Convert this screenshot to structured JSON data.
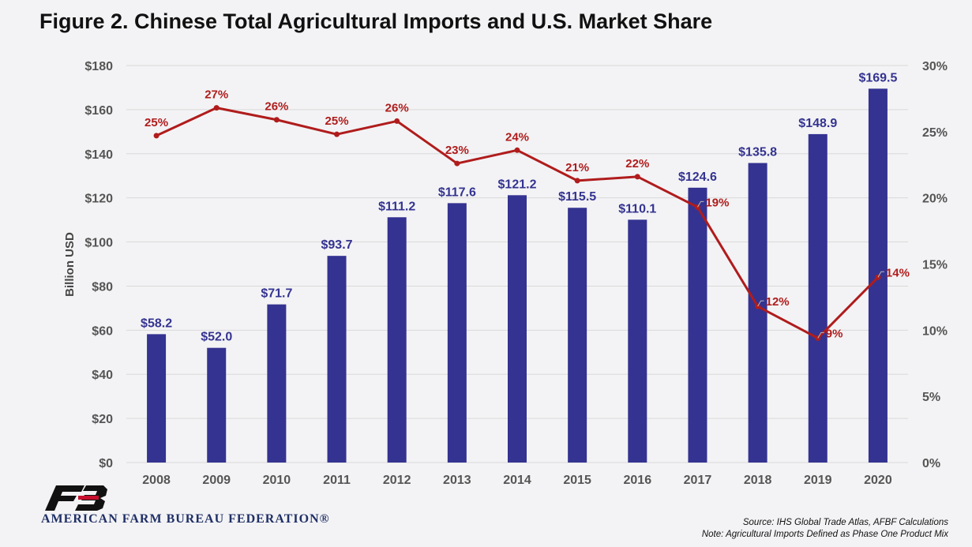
{
  "title": "Figure 2. Chinese Total Agricultural Imports and U.S. Market Share",
  "source_line": "Source: IHS Global Trade Atlas, AFBF Calculations",
  "note_line": "Note: Agricultural Imports Defined as Phase One Product Mix",
  "logo_text": "AMERICAN FARM BUREAU FEDERATION®",
  "logo_icon": "afbf-fb-logo",
  "chart_data": {
    "type": "bar",
    "categories": [
      "2008",
      "2009",
      "2010",
      "2011",
      "2012",
      "2013",
      "2014",
      "2015",
      "2016",
      "2017",
      "2018",
      "2019",
      "2020"
    ],
    "ylabel": "Billion USD",
    "ylim": [
      0,
      180
    ],
    "y_ticks": [
      "$0",
      "$20",
      "$40",
      "$60",
      "$80",
      "$100",
      "$120",
      "$140",
      "$160",
      "$180"
    ],
    "y2lim": [
      0,
      30
    ],
    "y2_ticks": [
      "0%",
      "5%",
      "10%",
      "15%",
      "20%",
      "25%",
      "30%"
    ],
    "grid": true,
    "series": [
      {
        "type": "bar",
        "values": [
          58.2,
          52.0,
          71.7,
          93.7,
          111.2,
          117.6,
          121.2,
          115.5,
          110.1,
          124.6,
          135.8,
          148.9,
          169.5
        ],
        "labels": [
          "$58.2",
          "$52.0",
          "$71.7",
          "$93.7",
          "$111.2",
          "$117.6",
          "$121.2",
          "$115.5",
          "$110.1",
          "$124.6",
          "$135.8",
          "$148.9",
          "$169.5"
        ],
        "color": "#343391",
        "axis": "left"
      },
      {
        "type": "line",
        "values": [
          24.7,
          26.8,
          25.9,
          24.8,
          25.8,
          22.6,
          23.6,
          21.3,
          21.6,
          19.3,
          11.8,
          9.4,
          14.0
        ],
        "labels": [
          "25%",
          "27%",
          "26%",
          "25%",
          "26%",
          "23%",
          "24%",
          "21%",
          "22%",
          "19%",
          "12%",
          "9%",
          "14%"
        ],
        "color": "#b01c1c",
        "axis": "right"
      }
    ]
  }
}
